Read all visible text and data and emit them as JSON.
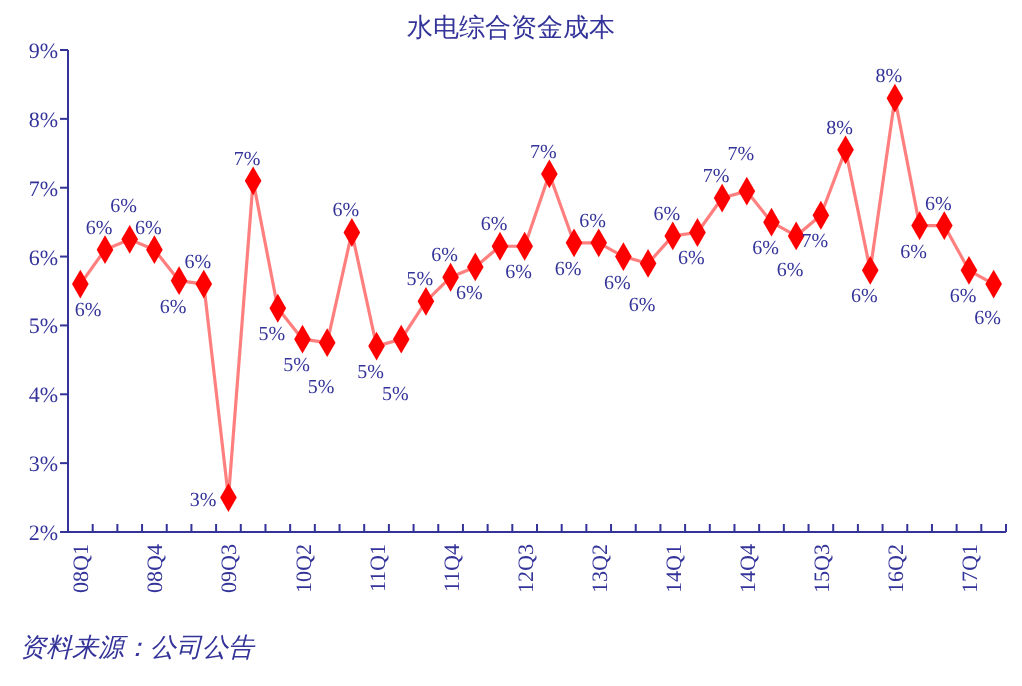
{
  "chart_data": {
    "type": "line",
    "title": "水电综合资金成本",
    "categories": [
      "08Q1",
      null,
      null,
      "08Q4",
      null,
      null,
      "09Q3",
      null,
      null,
      "10Q2",
      null,
      null,
      "11Q1",
      null,
      null,
      "11Q4",
      null,
      null,
      "12Q3",
      null,
      null,
      "13Q2",
      null,
      null,
      "14Q1",
      null,
      null,
      "14Q4",
      null,
      null,
      "15Q3",
      null,
      null,
      "16Q2",
      null,
      null,
      "17Q1",
      null
    ],
    "series": [
      {
        "color": "#ff0000",
        "values": [
          5.6,
          6.1,
          6.25,
          6.1,
          5.65,
          5.6,
          2.5,
          7.1,
          5.25,
          4.8,
          4.75,
          6.35,
          4.7,
          4.8,
          5.35,
          5.7,
          5.85,
          6.15,
          6.15,
          7.2,
          6.2,
          6.2,
          6.0,
          5.9,
          6.3,
          6.35,
          6.85,
          6.95,
          6.5,
          6.3,
          6.6,
          7.55,
          5.8,
          8.3,
          6.45,
          6.45,
          5.8,
          5.6
        ],
        "value_labels": [
          "6%",
          "6%",
          "6%",
          "6%",
          "6%",
          "6%",
          "3%",
          "7%",
          "5%",
          "5%",
          "5%",
          "6%",
          "5%",
          "5%",
          "5%",
          "6%",
          "6%",
          "6%",
          "6%",
          "7%",
          "6%",
          "6%",
          "6%",
          "6%",
          "6%",
          "6%",
          "7%",
          "7%",
          "6%",
          "6%",
          "7%",
          "8%",
          "6%",
          "8%",
          "6%",
          "6%",
          "6%",
          "6%"
        ]
      }
    ],
    "ylim": [
      2,
      9
    ],
    "yticks": [
      {
        "value": 2,
        "label": "2%"
      },
      {
        "value": 3,
        "label": "3%"
      },
      {
        "value": 4,
        "label": "4%"
      },
      {
        "value": 5,
        "label": "5%"
      },
      {
        "value": 6,
        "label": "6%"
      },
      {
        "value": 7,
        "label": "7%"
      },
      {
        "value": 8,
        "label": "8%"
      },
      {
        "value": 9,
        "label": "9%"
      }
    ],
    "marker": "diamond",
    "line_style": "solid",
    "annotations": [
      "资料来源：公司公告"
    ]
  }
}
